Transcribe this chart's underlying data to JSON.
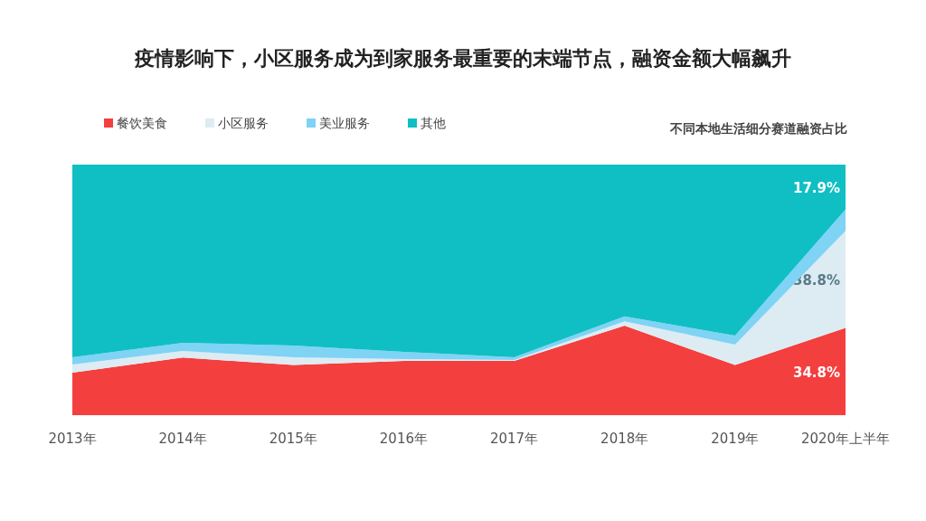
{
  "chart_data": {
    "type": "area",
    "stacked": true,
    "title": "疫情影响下，小区服务成为到家服务最重要的末端节点，融资金额大幅飙升",
    "subtitle": "不同本地生活细分赛道融资占比",
    "categories": [
      "2013年",
      "2014年",
      "2015年",
      "2016年",
      "2017年",
      "2018年",
      "2019年",
      "2020年上半年"
    ],
    "ylim": [
      0,
      100
    ],
    "tick_labels": "x",
    "legend": "top left",
    "grid": false,
    "series": [
      {
        "name": "餐饮美食",
        "color": "#f43f3f",
        "values": [
          17,
          23,
          20,
          21.7,
          21.7,
          35.7,
          20,
          34.8
        ],
        "value_labels": [
          null,
          null,
          null,
          null,
          null,
          null,
          null,
          "34.8%"
        ]
      },
      {
        "name": "小区服务",
        "color": "#dcecf2",
        "values": [
          3.2,
          2.6,
          3.1,
          0.7,
          0.3,
          1.8,
          8.2,
          38.8
        ],
        "value_labels": [
          null,
          null,
          null,
          null,
          null,
          null,
          null,
          "38.8%"
        ]
      },
      {
        "name": "美业服务",
        "color": "#7fd3f5",
        "values": [
          2.9,
          3.3,
          4.7,
          2.9,
          1.1,
          1.9,
          3.6,
          8.5
        ]
      },
      {
        "name": "其他",
        "color": "#0fbfc4",
        "values": [
          76.9,
          71.1,
          72.2,
          74.7,
          76.9,
          60.6,
          68.2,
          17.9
        ],
        "value_labels": [
          null,
          null,
          null,
          null,
          null,
          null,
          null,
          "17.9%"
        ]
      }
    ]
  }
}
